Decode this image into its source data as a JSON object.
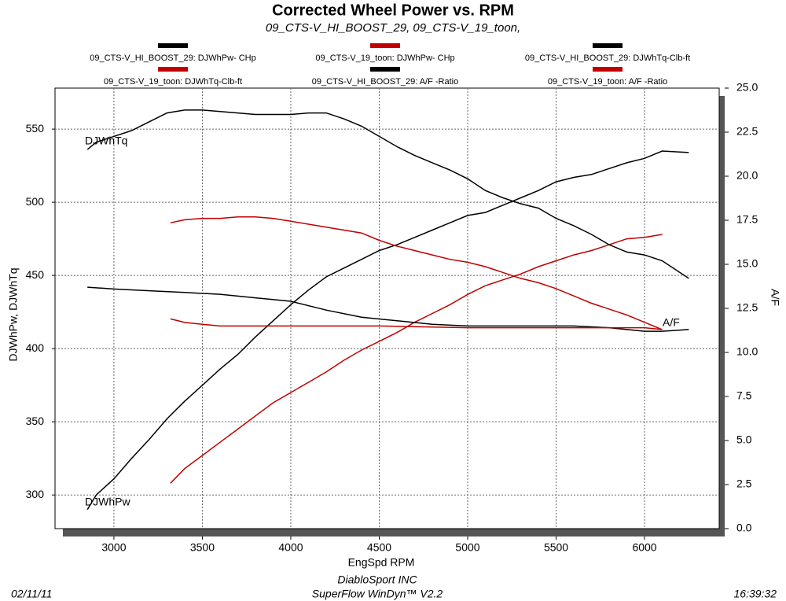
{
  "chart_data": {
    "type": "line",
    "title": "Corrected Wheel Power vs. RPM",
    "subtitle": "09_CTS-V_HI_BOOST_29, 09_CTS-V_19_toon,",
    "x_label": "EngSpd  RPM",
    "y_label": "DJWhPw, DJWhTq",
    "y2_label": "A/F",
    "annotations": [
      "DJWhTq",
      "DJWhPw",
      "A/F"
    ],
    "xlim": [
      2667,
      6422
    ],
    "xticks": [
      3000,
      3500,
      4000,
      4500,
      5000,
      5500,
      6000
    ],
    "ylim": [
      277,
      578
    ],
    "yticks": [
      300,
      350,
      400,
      450,
      500,
      550
    ],
    "y2lim": [
      0,
      25
    ],
    "y2ticks": [
      {
        "value": 0,
        "label": "0.0"
      },
      2.5,
      {
        "value": 5,
        "label": "5.0"
      },
      7.5,
      {
        "value": 10,
        "label": "10.0"
      },
      12.5,
      {
        "value": 15,
        "label": "15.0"
      },
      17.5,
      {
        "value": 20,
        "label": "20.0"
      },
      22.5,
      {
        "value": 25,
        "label": "25.0"
      }
    ],
    "grid": true,
    "series": [
      {
        "name": "09_CTS-V_HI_BOOST_29: DJWhPw- CHp",
        "color": "#000000",
        "x": [
          2850,
          2900,
          3000,
          3100,
          3200,
          3300,
          3400,
          3500,
          3600,
          3700,
          3800,
          3900,
          4000,
          4100,
          4200,
          4300,
          4400,
          4500,
          4600,
          4700,
          4800,
          4900,
          5000,
          5100,
          5200,
          5300,
          5400,
          5500,
          5600,
          5700,
          5800,
          5900,
          6000,
          6100,
          6250
        ],
        "values": [
          290,
          300,
          311,
          325,
          338,
          352,
          364,
          375,
          386,
          396,
          408,
          419,
          430,
          440,
          449,
          455,
          461,
          467,
          471,
          476,
          481,
          486,
          491,
          493,
          498,
          503,
          508,
          514,
          517,
          519,
          523,
          527,
          530,
          535,
          534
        ]
      },
      {
        "name": "09_CTS-V_19_toon: DJWhPw- CHp",
        "color": "#c00000",
        "x": [
          3320,
          3400,
          3500,
          3600,
          3700,
          3800,
          3900,
          4000,
          4100,
          4200,
          4300,
          4400,
          4500,
          4600,
          4700,
          4800,
          4900,
          5000,
          5100,
          5200,
          5300,
          5400,
          5500,
          5600,
          5700,
          5800,
          5900,
          6000,
          6100
        ],
        "values": [
          308,
          318,
          327,
          336,
          345,
          354,
          363,
          370,
          377,
          384,
          392,
          399,
          405,
          411,
          418,
          424,
          430,
          437,
          443,
          447,
          451,
          456,
          460,
          464,
          467,
          471,
          475,
          476,
          478
        ]
      },
      {
        "name": "09_CTS-V_HI_BOOST_29: DJWhTq-Clb-ft",
        "color": "#000000",
        "x": [
          2850,
          2900,
          3000,
          3100,
          3200,
          3300,
          3400,
          3500,
          3600,
          3700,
          3800,
          3900,
          4000,
          4100,
          4200,
          4300,
          4400,
          4500,
          4600,
          4700,
          4800,
          4900,
          5000,
          5100,
          5200,
          5300,
          5400,
          5500,
          5600,
          5700,
          5800,
          5900,
          6000,
          6100,
          6250
        ],
        "values": [
          536,
          541,
          545,
          549,
          555,
          561,
          563,
          563,
          562,
          561,
          560,
          560,
          560,
          561,
          561,
          557,
          552,
          545,
          538,
          532,
          527,
          522,
          516,
          508,
          503,
          499,
          496,
          489,
          484,
          478,
          471,
          466,
          464,
          460,
          448
        ]
      },
      {
        "name": "09_CTS-V_19_toon: DJWhTq-Clb-ft",
        "color": "#c00000",
        "x": [
          3320,
          3400,
          3500,
          3600,
          3700,
          3800,
          3900,
          4000,
          4100,
          4200,
          4300,
          4400,
          4500,
          4600,
          4700,
          4800,
          4900,
          5000,
          5100,
          5200,
          5300,
          5400,
          5500,
          5600,
          5700,
          5800,
          5900,
          6000,
          6100
        ],
        "values": [
          486,
          488,
          489,
          489,
          490,
          490,
          489,
          487,
          485,
          483,
          481,
          479,
          474,
          470,
          467,
          464,
          461,
          459,
          456,
          452,
          448,
          445,
          441,
          436,
          431,
          427,
          423,
          418,
          413
        ]
      },
      {
        "name": "09_CTS-V_HI_BOOST_29:  A/F  -Ratio",
        "color": "#000000",
        "axis": "y2",
        "x": [
          2850,
          3000,
          3200,
          3400,
          3600,
          3800,
          4000,
          4200,
          4400,
          4600,
          4800,
          5000,
          5200,
          5400,
          5600,
          5800,
          6000,
          6100,
          6250
        ],
        "values": [
          13.7,
          13.6,
          13.5,
          13.4,
          13.3,
          13.1,
          12.9,
          12.4,
          12.0,
          11.8,
          11.6,
          11.5,
          11.5,
          11.5,
          11.5,
          11.4,
          11.2,
          11.2,
          11.3
        ]
      },
      {
        "name": "09_CTS-V_19_toon:  A/F  -Ratio",
        "color": "#c00000",
        "axis": "y2",
        "x": [
          3320,
          3400,
          3500,
          3600,
          4000,
          4500,
          5000,
          5500,
          6000,
          6100
        ],
        "values": [
          11.9,
          11.7,
          11.6,
          11.5,
          11.5,
          11.5,
          11.4,
          11.4,
          11.4,
          11.3
        ]
      }
    ]
  },
  "footer": {
    "date": "02/11/11",
    "company": "DiabloSport INC",
    "software": "SuperFlow WinDyn™ V2.2",
    "time": "16:39:32"
  }
}
